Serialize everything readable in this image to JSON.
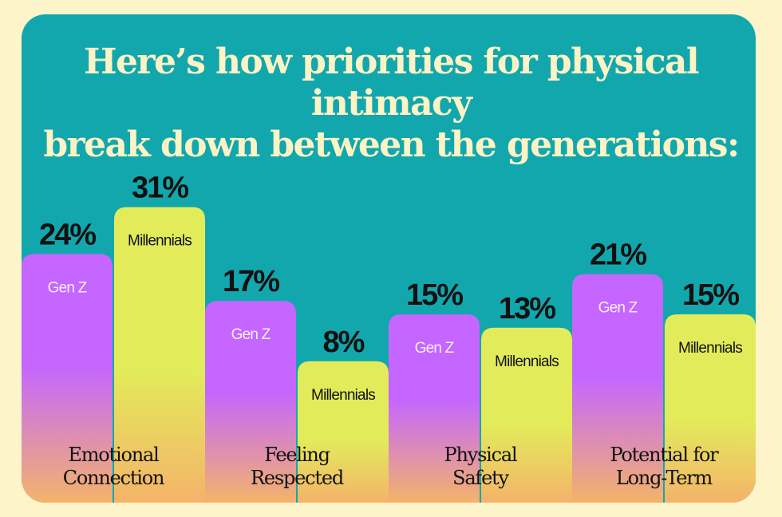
{
  "title_line1": "Here’s how priorities for physical intimacy",
  "title_line2": "break down between the generations:",
  "colors": {
    "background": "#fdf4c9",
    "card": "#12a7ad",
    "title": "#fdf3c4",
    "genz_top": "#c466ff",
    "genz_bottom": "#f4b36a",
    "mill_top": "#e2ec5a",
    "mill_bottom": "#f4b36a",
    "text_dark": "#111111",
    "genz_label": "#fdf0ff"
  },
  "chart_data": {
    "type": "bar",
    "title": "Here’s how priorities for physical intimacy break down between the generations:",
    "categories": [
      [
        "Emotional",
        "Connection"
      ],
      [
        "Feeling",
        "Respected"
      ],
      [
        "Physical",
        "Safety"
      ],
      [
        "Potential for",
        "Long-Term"
      ]
    ],
    "series": [
      {
        "name": "Gen Z",
        "label": "Gen Z",
        "values": [
          24,
          17,
          15,
          21
        ],
        "value_labels": [
          "24%",
          "17%",
          "15%",
          "21%"
        ]
      },
      {
        "name": "Millennials",
        "label": "Millennials",
        "values": [
          31,
          8,
          13,
          15
        ],
        "value_labels": [
          "31%",
          "8%",
          "13%",
          "15%"
        ]
      }
    ],
    "unit": "%",
    "xlabel": "",
    "ylabel": "",
    "grid": false,
    "legend": "inline bar labels"
  }
}
